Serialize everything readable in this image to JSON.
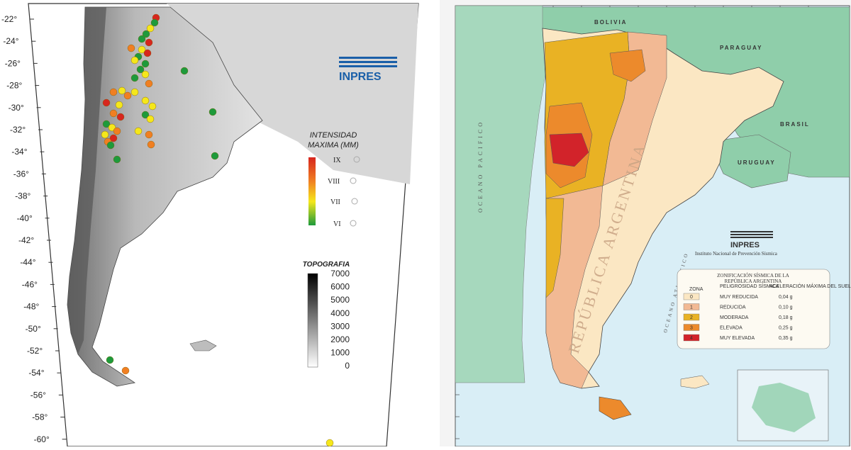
{
  "left_map": {
    "lat_labels": [
      "-22°",
      "-24°",
      "-26°",
      "-28°",
      "-30°",
      "-32°",
      "-34°",
      "-36°",
      "-38°",
      "-40°",
      "-42°",
      "-44°",
      "-46°",
      "-48°",
      "-50°",
      "-52°",
      "-54°",
      "-56°",
      "-58°",
      "-60°"
    ],
    "logo_text": "INPRES",
    "intensity_title": [
      "INTENSIDAD",
      "MAXIMA (MM)"
    ],
    "intensity_levels": [
      "IX",
      "VIII",
      "VII",
      "VI"
    ],
    "topo_title": "TOPOGRAFIA",
    "topo_ticks": [
      "7000",
      "6000",
      "5000",
      "4000",
      "3000",
      "2000",
      "1000",
      "0"
    ],
    "colors": {
      "red": "#d7261e",
      "orange": "#f07f22",
      "yellow": "#f5e71b",
      "green": "#1e9a3b"
    }
  },
  "right_map": {
    "countries": [
      "BOLIVIA",
      "PARAGUAY",
      "BRASIL",
      "URUGUAY"
    ],
    "ocean_pacific": "OCEANO PACIFICO",
    "ocean_atlantic": "OCEANO ATLANTICO",
    "country_label": "REPÚBLICA ARGENTINA",
    "logo_text": "INPRES",
    "institute": "Instituto Nacional de Prevención Sísmica",
    "legend": {
      "title": [
        "ZONIFICACIÓN SÍSMICA DE LA",
        "REPÚBLICA ARGENTINA"
      ],
      "headers": [
        "ZONA",
        "PELIGROSIDAD SÍSMICA",
        "ACELERACIÓN MÁXIMA DEL SUELO"
      ],
      "rows": [
        {
          "zone": "0",
          "hazard": "MUY REDUCIDA",
          "accel": "0,04 g",
          "color": "#fbe7c3"
        },
        {
          "zone": "1",
          "hazard": "REDUCIDA",
          "accel": "0,10 g",
          "color": "#f2b994"
        },
        {
          "zone": "2",
          "hazard": "MODERADA",
          "accel": "0,18 g",
          "color": "#e9b224"
        },
        {
          "zone": "3",
          "hazard": "ELEVADA",
          "accel": "0,25 g",
          "color": "#ec8a2c"
        },
        {
          "zone": "4",
          "hazard": "MUY ELEVADA",
          "accel": "0,35 g",
          "color": "#d2232a"
        }
      ]
    },
    "colors": {
      "ocean": "#d9eef6",
      "neighbor": "#8fceaa",
      "border": "#222"
    }
  }
}
